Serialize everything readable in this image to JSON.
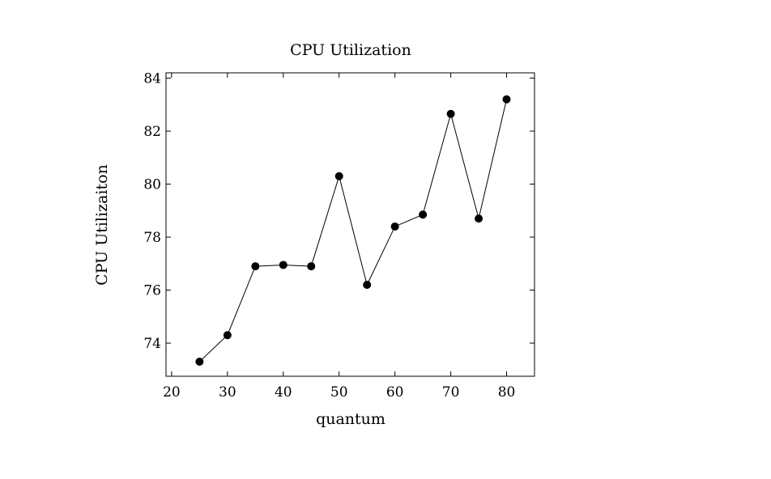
{
  "chart_data": {
    "type": "line",
    "title": "CPU Utilization",
    "xlabel": "quantum",
    "ylabel": "CPU Utilizaiton",
    "xlim": [
      19,
      85
    ],
    "ylim": [
      72.75,
      84.2
    ],
    "xticks": [
      20,
      30,
      40,
      50,
      60,
      70,
      80
    ],
    "yticks": [
      74,
      76,
      78,
      80,
      82,
      84
    ],
    "grid": false,
    "legend": "none",
    "series": [
      {
        "color": "#000000",
        "marker": "filled-circle",
        "x": [
          25,
          30,
          35,
          40,
          45,
          50,
          55,
          60,
          65,
          70,
          75,
          80
        ],
        "y": [
          73.3,
          74.3,
          76.9,
          76.95,
          76.9,
          80.3,
          76.2,
          78.4,
          78.85,
          82.65,
          78.7,
          83.2
        ]
      }
    ]
  }
}
